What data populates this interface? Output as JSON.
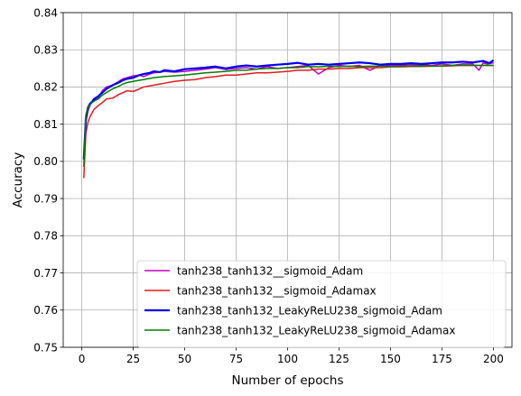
{
  "chart_data": {
    "type": "line",
    "xlabel": "Number of epochs",
    "ylabel": "Accuracy",
    "xlim": [
      -9,
      209
    ],
    "ylim": [
      0.75,
      0.84
    ],
    "xticks": [
      0,
      25,
      50,
      75,
      100,
      125,
      150,
      175,
      200
    ],
    "xtick_labels": [
      "0",
      "25",
      "50",
      "75",
      "100",
      "125",
      "150",
      "175",
      "200"
    ],
    "yticks": [
      0.75,
      0.76,
      0.77,
      0.78,
      0.79,
      0.8,
      0.81,
      0.82,
      0.83,
      0.84
    ],
    "ytick_labels": [
      "0.75",
      "0.76",
      "0.77",
      "0.78",
      "0.79",
      "0.80",
      "0.81",
      "0.82",
      "0.83",
      "0.84"
    ],
    "grid": true,
    "legend_position": "lower-right",
    "series": [
      {
        "name": "tanh238_tanh132__sigmoid_Adam",
        "color": "#bf00bf",
        "linewidth": 1.5,
        "x": [
          1,
          2,
          3,
          4,
          5,
          6,
          8,
          10,
          12,
          15,
          18,
          20,
          22,
          25,
          28,
          30,
          33,
          35,
          38,
          40,
          45,
          50,
          55,
          60,
          65,
          70,
          75,
          80,
          85,
          90,
          95,
          100,
          105,
          110,
          115,
          120,
          125,
          130,
          135,
          140,
          145,
          150,
          155,
          160,
          165,
          170,
          175,
          180,
          185,
          190,
          193,
          195,
          197,
          200
        ],
        "values": [
          0.801,
          0.8105,
          0.8135,
          0.815,
          0.816,
          0.8165,
          0.817,
          0.819,
          0.82,
          0.8205,
          0.8215,
          0.8222,
          0.8225,
          0.823,
          0.8232,
          0.8228,
          0.8235,
          0.8238,
          0.824,
          0.8242,
          0.824,
          0.8242,
          0.8245,
          0.8248,
          0.8252,
          0.8247,
          0.825,
          0.8252,
          0.8248,
          0.8255,
          0.825,
          0.8252,
          0.8255,
          0.8258,
          0.8235,
          0.8252,
          0.8258,
          0.8255,
          0.8258,
          0.8245,
          0.8258,
          0.8258,
          0.8258,
          0.826,
          0.826,
          0.8258,
          0.8262,
          0.8258,
          0.8262,
          0.8262,
          0.8245,
          0.8265,
          0.8262,
          0.8265
        ]
      },
      {
        "name": "tanh238_tanh132__sigmoid_Adamax",
        "color": "#e41a1c",
        "linewidth": 1.5,
        "x": [
          1,
          2,
          3,
          4,
          5,
          6,
          8,
          10,
          12,
          15,
          18,
          20,
          22,
          25,
          28,
          30,
          35,
          40,
          45,
          50,
          55,
          60,
          65,
          70,
          75,
          80,
          85,
          90,
          95,
          100,
          105,
          110,
          115,
          120,
          125,
          130,
          135,
          140,
          145,
          150,
          155,
          160,
          165,
          170,
          175,
          180,
          185,
          190,
          195,
          200
        ],
        "values": [
          0.7955,
          0.8075,
          0.8105,
          0.812,
          0.813,
          0.814,
          0.815,
          0.8158,
          0.8168,
          0.817,
          0.818,
          0.8185,
          0.819,
          0.8188,
          0.8195,
          0.82,
          0.8205,
          0.821,
          0.8215,
          0.8218,
          0.822,
          0.8225,
          0.8228,
          0.8232,
          0.8232,
          0.8235,
          0.8238,
          0.8238,
          0.824,
          0.8242,
          0.8245,
          0.8245,
          0.8248,
          0.8248,
          0.825,
          0.825,
          0.8252,
          0.8252,
          0.8252,
          0.8254,
          0.8254,
          0.8255,
          0.8255,
          0.8256,
          0.8256,
          0.8257,
          0.8258,
          0.8258,
          0.8258,
          0.8258
        ]
      },
      {
        "name": "tanh238_tanh132_LeakyReLU238_sigmoid_Adam",
        "color": "#0000ee",
        "linewidth": 2.2,
        "x": [
          1,
          2,
          3,
          4,
          5,
          6,
          8,
          10,
          12,
          15,
          18,
          20,
          22,
          25,
          28,
          30,
          33,
          35,
          38,
          40,
          45,
          50,
          55,
          60,
          65,
          70,
          75,
          80,
          85,
          90,
          95,
          100,
          105,
          110,
          115,
          120,
          125,
          130,
          135,
          140,
          145,
          150,
          155,
          160,
          165,
          170,
          175,
          180,
          185,
          190,
          195,
          198,
          200
        ],
        "values": [
          0.8005,
          0.8115,
          0.8145,
          0.8155,
          0.816,
          0.8168,
          0.8175,
          0.8185,
          0.8195,
          0.8205,
          0.8212,
          0.8218,
          0.8222,
          0.8225,
          0.8232,
          0.8235,
          0.8238,
          0.8242,
          0.824,
          0.8245,
          0.8242,
          0.8248,
          0.825,
          0.8252,
          0.8255,
          0.825,
          0.8255,
          0.8258,
          0.8255,
          0.8258,
          0.826,
          0.8262,
          0.8265,
          0.826,
          0.8262,
          0.826,
          0.8262,
          0.8264,
          0.8266,
          0.8264,
          0.826,
          0.8262,
          0.8262,
          0.8264,
          0.8262,
          0.8264,
          0.8266,
          0.8266,
          0.8268,
          0.8266,
          0.827,
          0.8264,
          0.8272
        ]
      },
      {
        "name": "tanh238_tanh132_LeakyReLU238_sigmoid_Adamax",
        "color": "#007f00",
        "linewidth": 1.5,
        "x": [
          1,
          2,
          3,
          4,
          5,
          6,
          8,
          10,
          12,
          15,
          18,
          20,
          22,
          25,
          28,
          30,
          35,
          40,
          45,
          50,
          55,
          60,
          65,
          70,
          75,
          80,
          85,
          90,
          95,
          100,
          105,
          110,
          115,
          120,
          125,
          130,
          135,
          140,
          145,
          150,
          155,
          160,
          165,
          170,
          175,
          180,
          185,
          190,
          195,
          200
        ],
        "values": [
          0.7985,
          0.8125,
          0.8145,
          0.8152,
          0.8158,
          0.8162,
          0.8168,
          0.8178,
          0.8185,
          0.8195,
          0.8202,
          0.8208,
          0.8212,
          0.8215,
          0.8218,
          0.822,
          0.8225,
          0.8228,
          0.823,
          0.8232,
          0.8235,
          0.8238,
          0.824,
          0.8242,
          0.8245,
          0.8245,
          0.8248,
          0.825,
          0.825,
          0.8252,
          0.8252,
          0.8255,
          0.8254,
          0.8256,
          0.8255,
          0.8256,
          0.8255,
          0.8256,
          0.8256,
          0.8255,
          0.8256,
          0.8256,
          0.8257,
          0.8256,
          0.8257,
          0.8258,
          0.8258,
          0.8258,
          0.8258,
          0.8258
        ]
      }
    ]
  }
}
